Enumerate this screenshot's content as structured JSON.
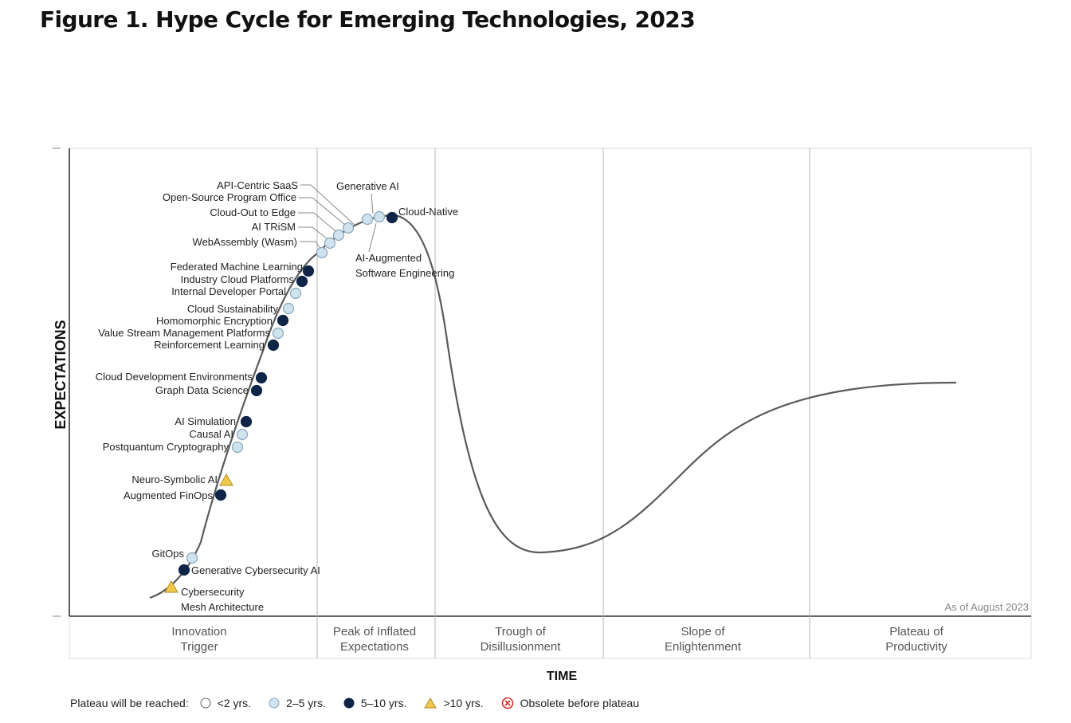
{
  "figure_title": "Figure 1. Hype Cycle for Emerging Technologies, 2023",
  "chart_data": {
    "type": "scatter",
    "title": "Hype Cycle for Emerging Technologies, 2023",
    "xlabel": "TIME",
    "ylabel": "EXPECTATIONS",
    "note": "As of August 2023",
    "grid": false,
    "legend_placement": "bottom",
    "phases": [
      {
        "lines": [
          "Innovation",
          "Trigger"
        ]
      },
      {
        "lines": [
          "Peak of Inflated",
          "Expectations"
        ]
      },
      {
        "lines": [
          "Trough of",
          "Disillusionment"
        ]
      },
      {
        "lines": [
          "Slope of",
          "Enlightenment"
        ]
      },
      {
        "lines": [
          "Plateau of",
          "Productivity"
        ]
      }
    ],
    "legend": {
      "title": "Plateau will be reached:",
      "items": [
        {
          "key": "lt2",
          "label": "<2 yrs."
        },
        {
          "key": "2to5",
          "label": "2–5 yrs."
        },
        {
          "key": "5to10",
          "label": "5–10 yrs."
        },
        {
          "key": "gt10",
          "label": ">10 yrs."
        },
        {
          "key": "obsolete",
          "label": "Obsolete before plateau"
        }
      ]
    },
    "colors": {
      "lt2": "#ffffff",
      "2to5": "#cfe3ef",
      "5to10": "#0f2547",
      "gt10": "#f2c84b",
      "obsolete": "#d9302c",
      "curve": "#5a5a5a"
    },
    "technologies": [
      {
        "name": "Cybersecurity Mesh Architecture",
        "lines": [
          "Cybersecurity",
          "Mesh Architecture"
        ],
        "plateau": "gt10"
      },
      {
        "name": "Generative Cybersecurity AI",
        "plateau": "5to10"
      },
      {
        "name": "GitOps",
        "plateau": "2to5"
      },
      {
        "name": "Augmented FinOps",
        "plateau": "5to10"
      },
      {
        "name": "Neuro-Symbolic AI",
        "plateau": "gt10"
      },
      {
        "name": "Postquantum Cryptography",
        "plateau": "2to5"
      },
      {
        "name": "Causal AI",
        "plateau": "2to5"
      },
      {
        "name": "AI Simulation",
        "plateau": "5to10"
      },
      {
        "name": "Graph Data Science",
        "plateau": "5to10"
      },
      {
        "name": "Cloud Development Environments",
        "plateau": "5to10"
      },
      {
        "name": "Reinforcement Learning",
        "plateau": "5to10"
      },
      {
        "name": "Value Stream Management Platforms",
        "plateau": "2to5"
      },
      {
        "name": "Homomorphic Encryption",
        "plateau": "5to10"
      },
      {
        "name": "Cloud Sustainability",
        "plateau": "2to5"
      },
      {
        "name": "Internal Developer Portal",
        "plateau": "2to5"
      },
      {
        "name": "Industry Cloud Platforms",
        "plateau": "5to10"
      },
      {
        "name": "Federated Machine Learning",
        "plateau": "5to10"
      },
      {
        "name": "WebAssembly (Wasm)",
        "plateau": "2to5"
      },
      {
        "name": "AI TRiSM",
        "plateau": "2to5"
      },
      {
        "name": "Cloud-Out to Edge",
        "plateau": "2to5"
      },
      {
        "name": "Open-Source Program Office",
        "plateau": "2to5"
      },
      {
        "name": "API-Centric SaaS",
        "plateau": "2to5"
      },
      {
        "name": "Generative AI",
        "plateau": "2to5"
      },
      {
        "name": "AI-Augmented Software Engineering",
        "lines": [
          "AI-Augmented",
          "Software Engineering"
        ],
        "plateau": "2to5"
      },
      {
        "name": "Cloud-Native",
        "plateau": "5to10"
      }
    ]
  }
}
